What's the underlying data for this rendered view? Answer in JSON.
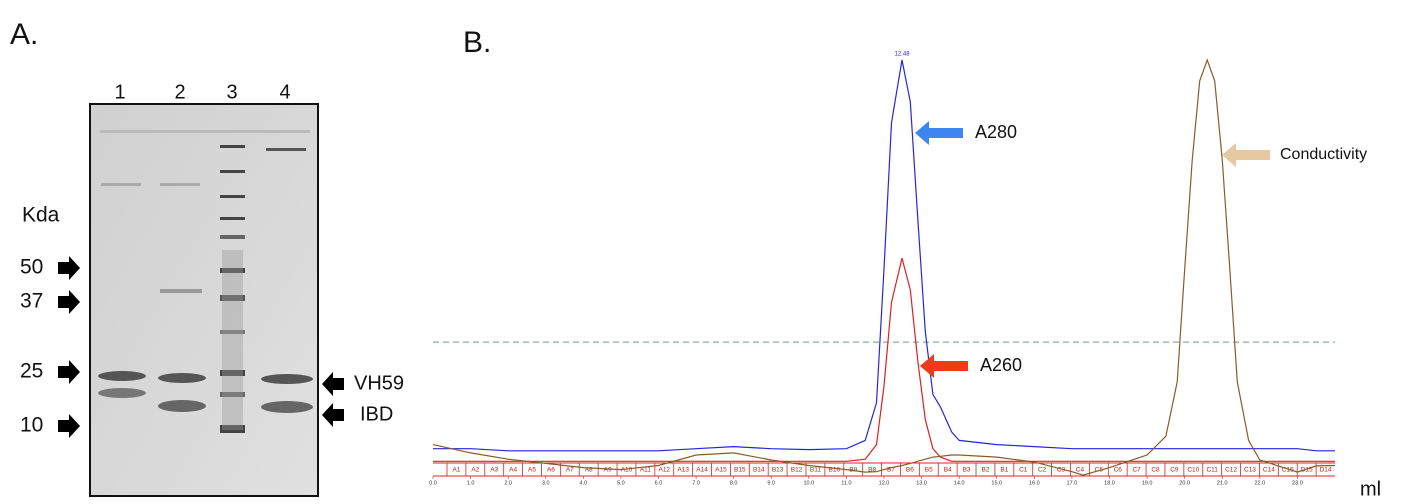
{
  "panel_a": {
    "label": "A.",
    "lanes": [
      "1",
      "2",
      "3",
      "4"
    ],
    "unit": "Kda",
    "markers": [
      "50",
      "37",
      "25",
      "10"
    ],
    "bands": [
      "VH59",
      "IBD"
    ]
  },
  "chart_data": {
    "type": "line",
    "panel_label": "B.",
    "x_label": "ml",
    "peak_label": "12.48",
    "x": [
      0,
      1,
      2,
      3,
      4,
      5,
      6,
      7,
      8,
      9,
      10,
      11,
      11.5,
      11.8,
      12.0,
      12.2,
      12.48,
      12.7,
      12.9,
      13.1,
      13.3,
      13.5,
      13.8,
      14,
      15,
      16,
      17,
      17.3,
      18,
      19,
      19.5,
      19.8,
      20.0,
      20.2,
      20.4,
      20.6,
      20.8,
      21.0,
      21.2,
      21.4,
      21.7,
      22,
      23,
      23.5,
      24
    ],
    "series": [
      {
        "name": "A280",
        "color": "#2626d9",
        "values": [
          7,
          7,
          6.5,
          6.5,
          6.5,
          6.5,
          6.5,
          7,
          7.5,
          7,
          6.8,
          7,
          9,
          18,
          50,
          85,
          100,
          90,
          62,
          35,
          20,
          17,
          11,
          9,
          8,
          7.5,
          7,
          7,
          7,
          7,
          7,
          7,
          7,
          7,
          7,
          7,
          7,
          7,
          7,
          7,
          7,
          7,
          7,
          6.5,
          6.5
        ]
      },
      {
        "name": "A260",
        "color": "#e02020",
        "values": [
          4,
          4,
          4,
          4,
          4,
          4,
          4,
          4,
          4,
          4,
          4,
          4,
          4.5,
          8,
          22,
          42,
          52.6,
          45,
          28,
          14,
          7,
          5,
          4,
          4,
          4,
          4,
          4,
          4,
          4,
          4,
          4,
          4,
          4,
          4,
          4,
          4,
          4,
          4,
          4,
          4,
          4,
          4,
          4,
          4,
          4
        ]
      },
      {
        "name": "Conductivity",
        "color": "#8b5a2b",
        "values": [
          8,
          6,
          4.5,
          3.5,
          2.5,
          2,
          3,
          5.5,
          6,
          4.3,
          3,
          2,
          1.4,
          1.5,
          2,
          2.5,
          3,
          3.5,
          4,
          4.5,
          5,
          5.2,
          5.5,
          5.5,
          5,
          3.8,
          1.5,
          0.7,
          2.5,
          5.5,
          10,
          23,
          50,
          76,
          95,
          100,
          95,
          76,
          50,
          23,
          9,
          4.3,
          1.4,
          2.9,
          3
        ]
      }
    ],
    "arrow_colors": [
      "#3d85f0",
      "#ee3b1a",
      "#e6c9a0"
    ],
    "threshold": 32.5,
    "xlim": [
      0,
      24
    ],
    "ylim": [
      0,
      100
    ],
    "xticks": [
      {
        "value": 0,
        "label": "0.0"
      },
      {
        "value": 1,
        "label": "1.0"
      },
      {
        "value": 2,
        "label": "2.0"
      },
      {
        "value": 3,
        "label": "3.0"
      },
      {
        "value": 4,
        "label": "4.0"
      },
      {
        "value": 5,
        "label": "5.0"
      },
      {
        "value": 6,
        "label": "6.0"
      },
      {
        "value": 7,
        "label": "7.0"
      },
      {
        "value": 8,
        "label": "8.0"
      },
      {
        "value": 9,
        "label": "9.0"
      },
      {
        "value": 10,
        "label": "10.0"
      },
      {
        "value": 11,
        "label": "11.0"
      },
      {
        "value": 12,
        "label": "12.0"
      },
      {
        "value": 13,
        "label": "13.0"
      },
      {
        "value": 14,
        "label": "14.0"
      },
      {
        "value": 15,
        "label": "15.0"
      },
      {
        "value": 16,
        "label": "16.0"
      },
      {
        "value": 17,
        "label": "17.0"
      },
      {
        "value": 18,
        "label": "18.0"
      },
      {
        "value": 19,
        "label": "19.0"
      },
      {
        "value": 20,
        "label": "20.0"
      },
      {
        "value": 21,
        "label": "21.0"
      },
      {
        "value": 22,
        "label": "22.0"
      },
      {
        "value": 23,
        "label": "23.0"
      }
    ],
    "fractions": [
      "A1",
      "A2",
      "A3",
      "A4",
      "A5",
      "A6",
      "A7",
      "A8",
      "A9",
      "A10",
      "A11",
      "A12",
      "A13",
      "A14",
      "A15",
      "B15",
      "B14",
      "B13",
      "B12",
      "B11",
      "B10",
      "B9",
      "B8",
      "B7",
      "B6",
      "B5",
      "B4",
      "B3",
      "B2",
      "B1",
      "C1",
      "C2",
      "C3",
      "C4",
      "C5",
      "C6",
      "C7",
      "C8",
      "C9",
      "C10",
      "C11",
      "C12",
      "C13",
      "C14",
      "C15",
      "D15",
      "D14"
    ]
  }
}
